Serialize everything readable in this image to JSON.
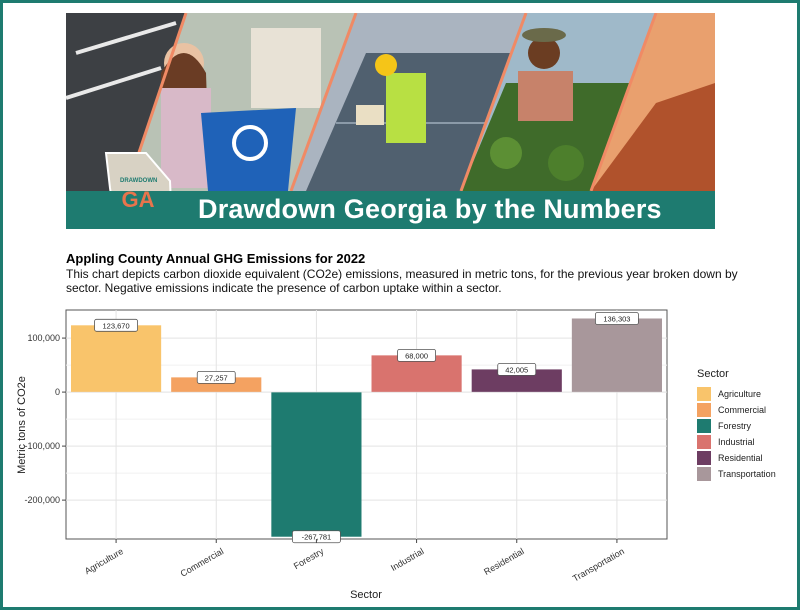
{
  "banner": {
    "title": "Drawdown Georgia by the Numbers",
    "badge_small": "DRAWDOWN",
    "badge_big": "GA"
  },
  "header": {
    "title": "Appling County Annual GHG Emissions for 2022",
    "description": "This chart depicts carbon dioxide equivalent (CO2e) emissions, measured in metric tons, for the previous year broken down by sector. Negative emissions indicate the presence of carbon uptake within a sector."
  },
  "chart_data": {
    "type": "bar",
    "title": "Appling County Annual GHG Emissions for 2022",
    "xlabel": "Sector",
    "ylabel": "Metric tons of CO2e",
    "categories": [
      "Agriculture",
      "Commercial",
      "Forestry",
      "Industrial",
      "Residential",
      "Transportation"
    ],
    "values": [
      123670,
      27257,
      -267781,
      68000,
      42005,
      136303
    ],
    "value_labels": [
      "123,670",
      "27,257",
      "-267,781",
      "68,000",
      "42,005",
      "136,303"
    ],
    "yticks": [
      100000,
      0,
      -100000,
      -200000
    ],
    "ytick_labels": [
      "100,000",
      "0",
      "-100,000",
      "-200,000"
    ],
    "ylim": [
      -272000,
      152000
    ],
    "grid": true,
    "legend": {
      "title": "Sector",
      "position": "right",
      "entries": [
        "Agriculture",
        "Commercial",
        "Forestry",
        "Industrial",
        "Residential",
        "Transportation"
      ]
    },
    "colors": [
      "#f9c46b",
      "#f4a261",
      "#1e7b70",
      "#d9736e",
      "#6d3d62",
      "#a8979b"
    ]
  },
  "theme": {
    "accent": "#1e7b70",
    "banner_text": "#ffffff"
  }
}
